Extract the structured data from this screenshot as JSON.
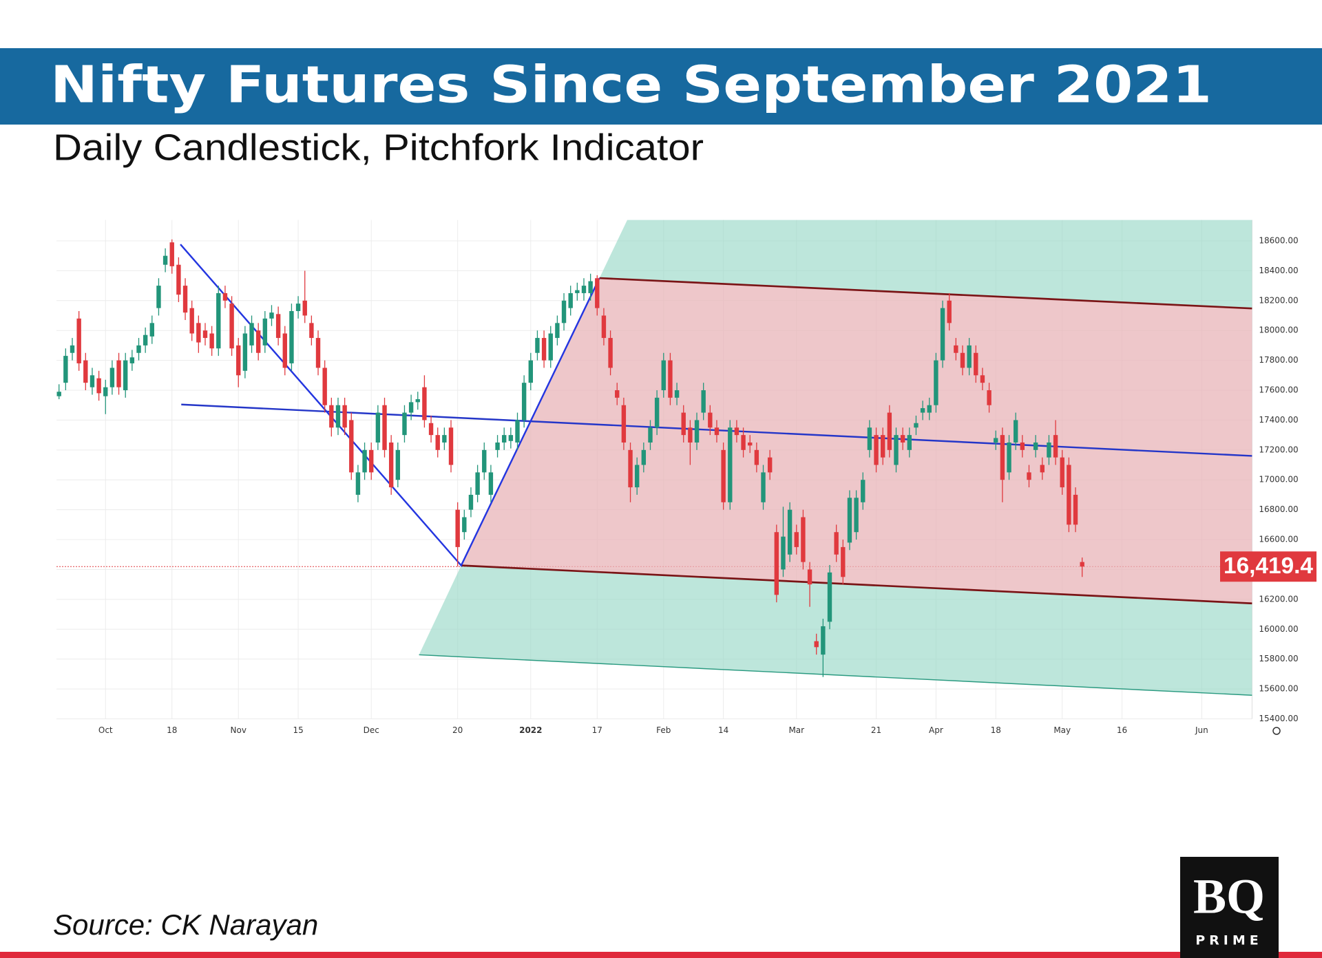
{
  "chart_data": {
    "type": "candlestick",
    "title": "Nifty Futures Since September 2021",
    "subtitle": "Daily Candlestick, Pitchfork Indicator",
    "source": "Source: CK Narayan",
    "categories": [
      null,
      null,
      null,
      null,
      null,
      null,
      null,
      "Oct",
      null,
      null,
      null,
      null,
      null,
      null,
      null,
      null,
      null,
      "18",
      null,
      null,
      null,
      null,
      null,
      null,
      null,
      null,
      null,
      "Nov",
      null,
      null,
      null,
      null,
      null,
      null,
      null,
      null,
      "15",
      null,
      null,
      null,
      null,
      null,
      null,
      null,
      null,
      null,
      null,
      "Dec",
      null,
      null,
      null,
      null,
      null,
      null,
      null,
      null,
      null,
      null,
      null,
      null,
      "20",
      null,
      null,
      null,
      null,
      null,
      null,
      null,
      null,
      null,
      null,
      "2022",
      null,
      null,
      null,
      null,
      null,
      null,
      null,
      null,
      null,
      "17",
      null,
      null,
      null,
      null,
      null,
      null,
      null,
      null,
      null,
      "Feb",
      null,
      null,
      null,
      null,
      null,
      null,
      null,
      null,
      "14",
      null,
      null,
      null,
      null,
      null,
      null,
      null,
      null,
      null,
      null,
      "Mar",
      null,
      null,
      null,
      null,
      null,
      null,
      null,
      null,
      null,
      null,
      null,
      "21",
      null,
      null,
      null,
      null,
      null,
      null,
      null,
      null,
      "Apr",
      null,
      null,
      null,
      null,
      null,
      null,
      null,
      null,
      "18",
      null,
      null,
      null,
      null,
      null,
      null,
      null,
      null,
      null,
      "May",
      null,
      null,
      null,
      null,
      null,
      null,
      null,
      null,
      "16",
      null,
      null,
      null,
      null,
      null,
      null,
      null,
      null,
      null,
      null,
      null,
      "Jun",
      null,
      null,
      null,
      null,
      null,
      null,
      null
    ],
    "open": [
      17560,
      17650,
      17850,
      18080,
      17800,
      17620,
      17680,
      17560,
      17620,
      17800,
      17600,
      17780,
      17850,
      17900,
      17960,
      18150,
      18440,
      18590,
      18440,
      18300,
      18150,
      18050,
      18000,
      17980,
      17880,
      18250,
      18180,
      17900,
      17730,
      17900,
      18000,
      17900,
      18080,
      18110,
      17980,
      17780,
      18130,
      18200,
      18050,
      17950,
      17750,
      17500,
      17350,
      17500,
      17400,
      16900,
      17050,
      17200,
      17250,
      17500,
      17250,
      17000,
      17300,
      17450,
      17520,
      17620,
      17380,
      17300,
      17250,
      17350,
      16800,
      16650,
      16800,
      16900,
      17050,
      16900,
      17200,
      17250,
      17260,
      17250,
      17400,
      17650,
      17850,
      17950,
      17800,
      17950,
      18050,
      18150,
      18250,
      18250,
      18250,
      18350,
      18100,
      17950,
      17600,
      17500,
      17200,
      16950,
      17100,
      17250,
      17350,
      17600,
      17800,
      17550,
      17450,
      17350,
      17250,
      17450,
      17450,
      17350,
      17200,
      16850,
      17350,
      17300,
      17250,
      17200,
      16850,
      17150,
      16650,
      16400,
      16500,
      16650,
      16750,
      16400,
      15920,
      15830,
      16050,
      16650,
      16550,
      16580,
      16650,
      16850,
      17200,
      17300,
      17300,
      17450,
      17100,
      17300,
      17200,
      17350,
      17450,
      17450,
      17500,
      17800,
      18200,
      17900,
      17850,
      17750,
      17850,
      17700,
      17600,
      17250,
      17300,
      17050,
      17250,
      17250,
      17050,
      17200,
      17100,
      17150,
      17300,
      17150,
      17100,
      16900,
      16450,
      null,
      null,
      null,
      null,
      null,
      null,
      null,
      null,
      null,
      null,
      null,
      null,
      null,
      null,
      null,
      null,
      null,
      null,
      null,
      null,
      null,
      null,
      null,
      null,
      null
    ],
    "high": [
      17640,
      17880,
      17950,
      18130,
      17850,
      17750,
      17730,
      17670,
      17800,
      17850,
      17850,
      17870,
      17950,
      18020,
      18100,
      18350,
      18550,
      18610,
      18490,
      18350,
      18200,
      18100,
      18050,
      18030,
      18300,
      18300,
      18230,
      17950,
      18030,
      18100,
      18050,
      18130,
      18170,
      18160,
      18030,
      18180,
      18230,
      18400,
      18100,
      18000,
      17800,
      17550,
      17550,
      17550,
      17450,
      17100,
      17250,
      17250,
      17500,
      17550,
      17300,
      17250,
      17500,
      17570,
      17590,
      17700,
      17430,
      17350,
      17350,
      17400,
      16850,
      16800,
      16950,
      17100,
      17250,
      17100,
      17300,
      17350,
      17350,
      17450,
      17700,
      17850,
      18000,
      18000,
      18030,
      18100,
      18250,
      18300,
      18320,
      18350,
      18380,
      18370,
      18150,
      18000,
      17650,
      17550,
      17250,
      17150,
      17250,
      17400,
      17600,
      17850,
      17850,
      17650,
      17500,
      17400,
      17450,
      17650,
      17500,
      17400,
      17250,
      17400,
      17400,
      17350,
      17300,
      17250,
      17100,
      17200,
      16700,
      16820,
      16850,
      16700,
      16800,
      16450,
      15970,
      16070,
      16430,
      16700,
      16600,
      16930,
      16930,
      17050,
      17400,
      17350,
      17350,
      17500,
      17350,
      17350,
      17350,
      17430,
      17530,
      17550,
      17850,
      18200,
      18250,
      17950,
      17900,
      17950,
      17900,
      17750,
      17650,
      17330,
      17350,
      17300,
      17450,
      17300,
      17100,
      17300,
      17150,
      17300,
      17400,
      17200,
      17150,
      16950,
      16480,
      null,
      null,
      null,
      null,
      null,
      null,
      null,
      null,
      null,
      null,
      null,
      null,
      null,
      null,
      null,
      null,
      null,
      null,
      null,
      null,
      null,
      null,
      null,
      null,
      null
    ],
    "low": [
      17540,
      17600,
      17800,
      17730,
      17600,
      17570,
      17530,
      17440,
      17570,
      17570,
      17550,
      17730,
      17800,
      17850,
      17910,
      18100,
      18390,
      18380,
      18190,
      18070,
      17930,
      17850,
      17900,
      17830,
      17830,
      18150,
      17830,
      17620,
      17680,
      17850,
      17800,
      17850,
      18030,
      17900,
      17700,
      17730,
      18080,
      18050,
      17900,
      17700,
      17450,
      17290,
      17300,
      17300,
      17000,
      16850,
      17000,
      17000,
      17200,
      17150,
      16900,
      16950,
      17250,
      17400,
      17470,
      17350,
      17250,
      17150,
      17200,
      17050,
      16420,
      16600,
      16750,
      16850,
      17000,
      16850,
      17150,
      17200,
      17210,
      17200,
      17350,
      17600,
      17800,
      17750,
      17750,
      17900,
      18000,
      18100,
      18200,
      18200,
      18200,
      18100,
      17900,
      17700,
      17500,
      17200,
      16850,
      16900,
      17050,
      17200,
      17300,
      17550,
      17500,
      17500,
      17250,
      17100,
      17200,
      17400,
      17300,
      17250,
      16800,
      16800,
      17250,
      17150,
      17180,
      17050,
      16800,
      17000,
      16180,
      16350,
      16450,
      16500,
      16400,
      16150,
      15830,
      15680,
      16000,
      16450,
      16300,
      16530,
      16600,
      16800,
      17150,
      17050,
      17100,
      17150,
      17050,
      17200,
      17150,
      17300,
      17400,
      17400,
      17450,
      17750,
      18000,
      17800,
      17700,
      17700,
      17650,
      17600,
      17450,
      17200,
      16850,
      17000,
      17200,
      17150,
      16950,
      17150,
      17000,
      17100,
      17100,
      16900,
      16650,
      16650,
      16350,
      null,
      null,
      null,
      null,
      null,
      null,
      null,
      null,
      null,
      null,
      null,
      null,
      null,
      null,
      null,
      null,
      null,
      null,
      null,
      null,
      null,
      null,
      null,
      null,
      null
    ],
    "close": [
      17590,
      17830,
      17900,
      17780,
      17650,
      17700,
      17580,
      17620,
      17750,
      17620,
      17800,
      17820,
      17900,
      17970,
      18050,
      18300,
      18500,
      18430,
      18240,
      18120,
      17980,
      17920,
      17950,
      17880,
      18250,
      18200,
      17880,
      17700,
      17980,
      18050,
      17850,
      18080,
      18120,
      17950,
      17750,
      18130,
      18180,
      18100,
      17950,
      17750,
      17500,
      17350,
      17500,
      17350,
      17050,
      17050,
      17200,
      17050,
      17450,
      17200,
      16950,
      17200,
      17450,
      17520,
      17540,
      17400,
      17300,
      17200,
      17300,
      17100,
      16550,
      16750,
      16900,
      17050,
      17200,
      17050,
      17250,
      17300,
      17300,
      17400,
      17650,
      17800,
      17950,
      17800,
      17980,
      18050,
      18200,
      18250,
      18270,
      18300,
      18330,
      18150,
      17950,
      17750,
      17550,
      17250,
      16950,
      17100,
      17200,
      17350,
      17550,
      17800,
      17550,
      17600,
      17300,
      17250,
      17400,
      17600,
      17350,
      17300,
      16850,
      17350,
      17300,
      17200,
      17230,
      17100,
      17050,
      17050,
      16230,
      16620,
      16800,
      16550,
      16450,
      16300,
      15880,
      16020,
      16380,
      16500,
      16350,
      16880,
      16880,
      17000,
      17350,
      17100,
      17150,
      17200,
      17300,
      17250,
      17300,
      17380,
      17480,
      17500,
      17800,
      18150,
      18050,
      17850,
      17750,
      17900,
      17700,
      17650,
      17500,
      17280,
      17000,
      17250,
      17400,
      17200,
      17000,
      17250,
      17050,
      17250,
      17150,
      16950,
      16700,
      16700,
      16419.4,
      null,
      null,
      null,
      null,
      null,
      null,
      null,
      null,
      null,
      null,
      null,
      null,
      null,
      null,
      null,
      null,
      null,
      null,
      null,
      null,
      null,
      null,
      null,
      null,
      null
    ],
    "up_color": "#22957a",
    "down_color": "#e0393e",
    "ylim": [
      15400,
      18740
    ],
    "yticks": [
      {
        "value": 15400,
        "label": "15400.00"
      },
      {
        "value": 15600,
        "label": "15600.00"
      },
      {
        "value": 15800,
        "label": "15800.00"
      },
      {
        "value": 16000,
        "label": "16000.00"
      },
      {
        "value": 16200,
        "label": "16200.00"
      },
      {
        "value": 16400,
        "label": "16400.00"
      },
      {
        "value": 16600,
        "label": "16600.00"
      },
      {
        "value": 16800,
        "label": "16800.00"
      },
      {
        "value": 17000,
        "label": "17000.00"
      },
      {
        "value": 17200,
        "label": "17200.00"
      },
      {
        "value": 17400,
        "label": "17400.00"
      },
      {
        "value": 17600,
        "label": "17600.00"
      },
      {
        "value": 17800,
        "label": "17800.00"
      },
      {
        "value": 18000,
        "label": "18000.00"
      },
      {
        "value": 18200,
        "label": "18200.00"
      },
      {
        "value": 18400,
        "label": "18400.00"
      },
      {
        "value": 18600,
        "label": "18600.00"
      }
    ],
    "grid": true,
    "last_price": {
      "value": 16419.4,
      "label": "16,419.4"
    }
  },
  "logo": {
    "mark": "BQ",
    "subtext": "PRIME"
  }
}
